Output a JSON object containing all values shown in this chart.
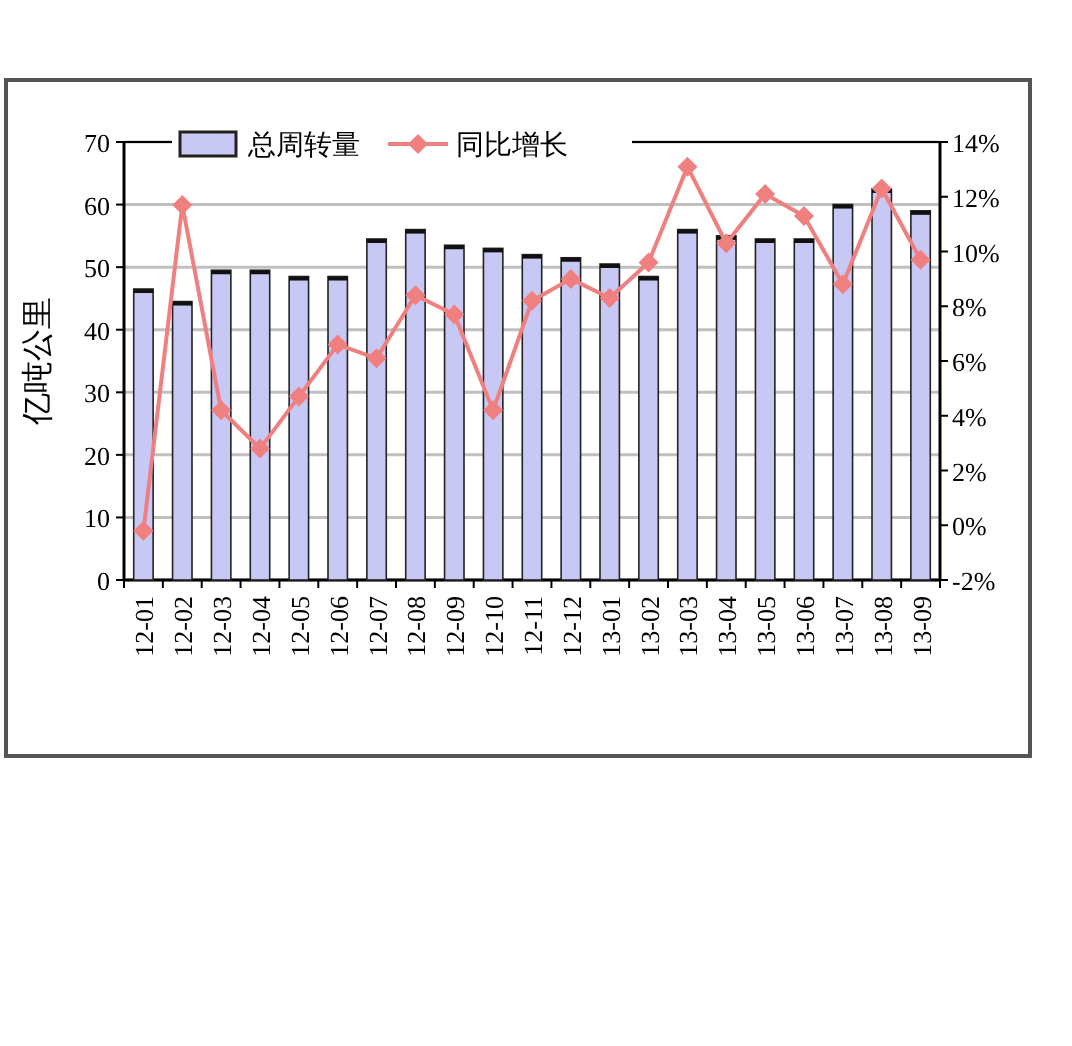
{
  "chart_data": {
    "type": "bar",
    "ylabel": "亿吨公里",
    "categories": [
      "12-01",
      "12-02",
      "12-03",
      "12-04",
      "12-05",
      "12-06",
      "12-07",
      "12-08",
      "12-09",
      "12-10",
      "12-11",
      "12-12",
      "13-01",
      "13-02",
      "13-03",
      "13-04",
      "13-05",
      "13-06",
      "13-07",
      "13-08",
      "13-09"
    ],
    "series": [
      {
        "name": "总周转量",
        "color": "#c8c8f4",
        "values": [
          46.5,
          44.5,
          49.5,
          49.5,
          48.5,
          48.5,
          54.5,
          56,
          53.5,
          53,
          52,
          51.5,
          50.5,
          48.5,
          56,
          55,
          54.5,
          54.5,
          60,
          62.5,
          59
        ]
      },
      {
        "name": "同比增长",
        "type": "line",
        "axis": "y2",
        "color": "#f08080",
        "marker": "diamond",
        "values": [
          -0.2,
          11.7,
          4.2,
          2.8,
          4.7,
          6.6,
          6.1,
          8.4,
          7.7,
          4.2,
          8.2,
          9.0,
          8.3,
          9.6,
          13.1,
          10.3,
          12.1,
          11.3,
          8.8,
          12.3,
          9.7
        ]
      }
    ],
    "ylim": [
      0,
      70
    ],
    "yticks": [
      0,
      10,
      20,
      30,
      40,
      50,
      60,
      70
    ],
    "y2lim": [
      -2,
      14
    ],
    "y2ticks": [
      {
        "value": -2,
        "label": "-2%"
      },
      {
        "value": 0,
        "label": "0%"
      },
      {
        "value": 2,
        "label": "2%"
      },
      {
        "value": 4,
        "label": "4%"
      },
      {
        "value": 6,
        "label": "6%"
      },
      {
        "value": 8,
        "label": "8%"
      },
      {
        "value": 10,
        "label": "10%"
      },
      {
        "value": 12,
        "label": "12%"
      },
      {
        "value": 14,
        "label": "14%"
      }
    ],
    "grid": "y",
    "legend": "top left"
  }
}
